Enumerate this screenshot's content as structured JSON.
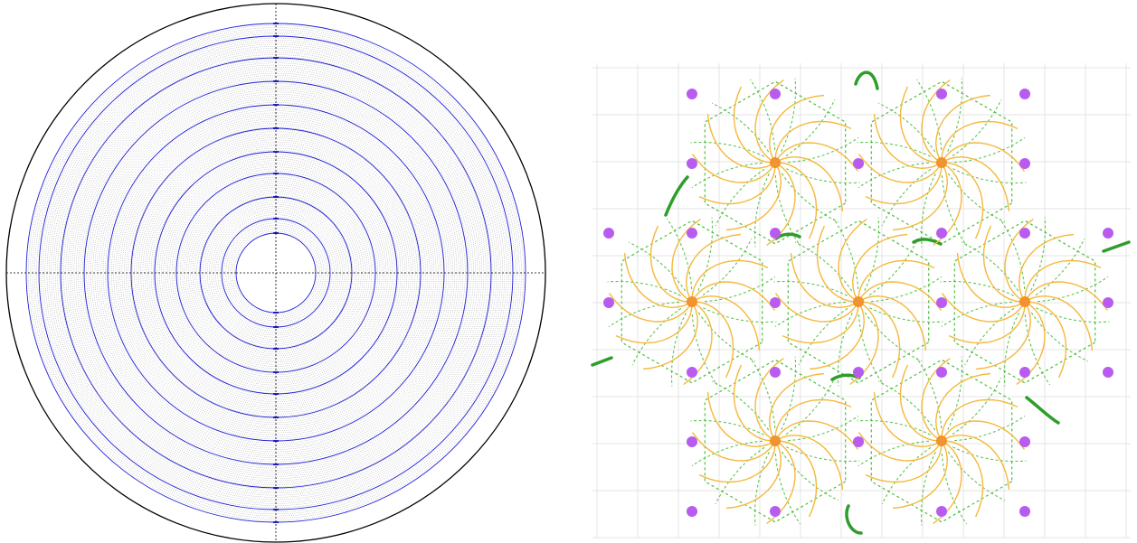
{
  "figure": {
    "left_panel": {
      "kind": "concentric-ring-pattern",
      "colors": {
        "outer_circle": "#000000",
        "ring_lines": "#1f1fd6",
        "fill_dots": "#444444",
        "crosshair": "#000000",
        "background": "#ffffff"
      },
      "blue_ring_count": 11,
      "dotted_fill": true,
      "crosshair": true
    },
    "right_panel": {
      "kind": "hexagonal-spiral-tiling",
      "colors": {
        "spiral_arms": "#f5b83a",
        "hub": "#f08a1c",
        "dashed_mesh": "#4cbf3c",
        "edge_bands": "#2e9d2a",
        "nodes": "#b85cf0",
        "grid": "#e4e4e4",
        "background": "#ffffff"
      },
      "cell_count": 7,
      "arms_per_cell": 12,
      "node_count": 30
    }
  }
}
